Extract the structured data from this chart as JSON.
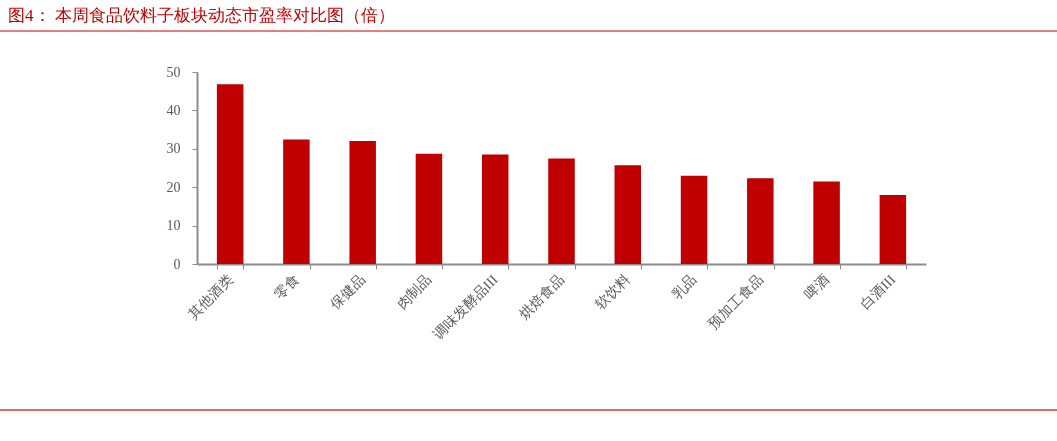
{
  "chart_data": {
    "type": "bar",
    "title": "图4： 本周食品饮料子板块动态市盈率对比图（倍）",
    "categories": [
      "其他酒类",
      "零食",
      "保健品",
      "肉制品",
      "调味发酵品III",
      "烘焙食品",
      "软饮料",
      "乳品",
      "预加工食品",
      "啤酒",
      "白酒III"
    ],
    "values": [
      46.8,
      32.4,
      32.0,
      28.7,
      28.5,
      27.5,
      25.7,
      23.0,
      22.3,
      21.5,
      18.0
    ],
    "color": "#c00000",
    "ylim": [
      0,
      50
    ],
    "yticks": [
      0,
      10,
      20,
      30,
      40,
      50
    ],
    "grid": false
  }
}
